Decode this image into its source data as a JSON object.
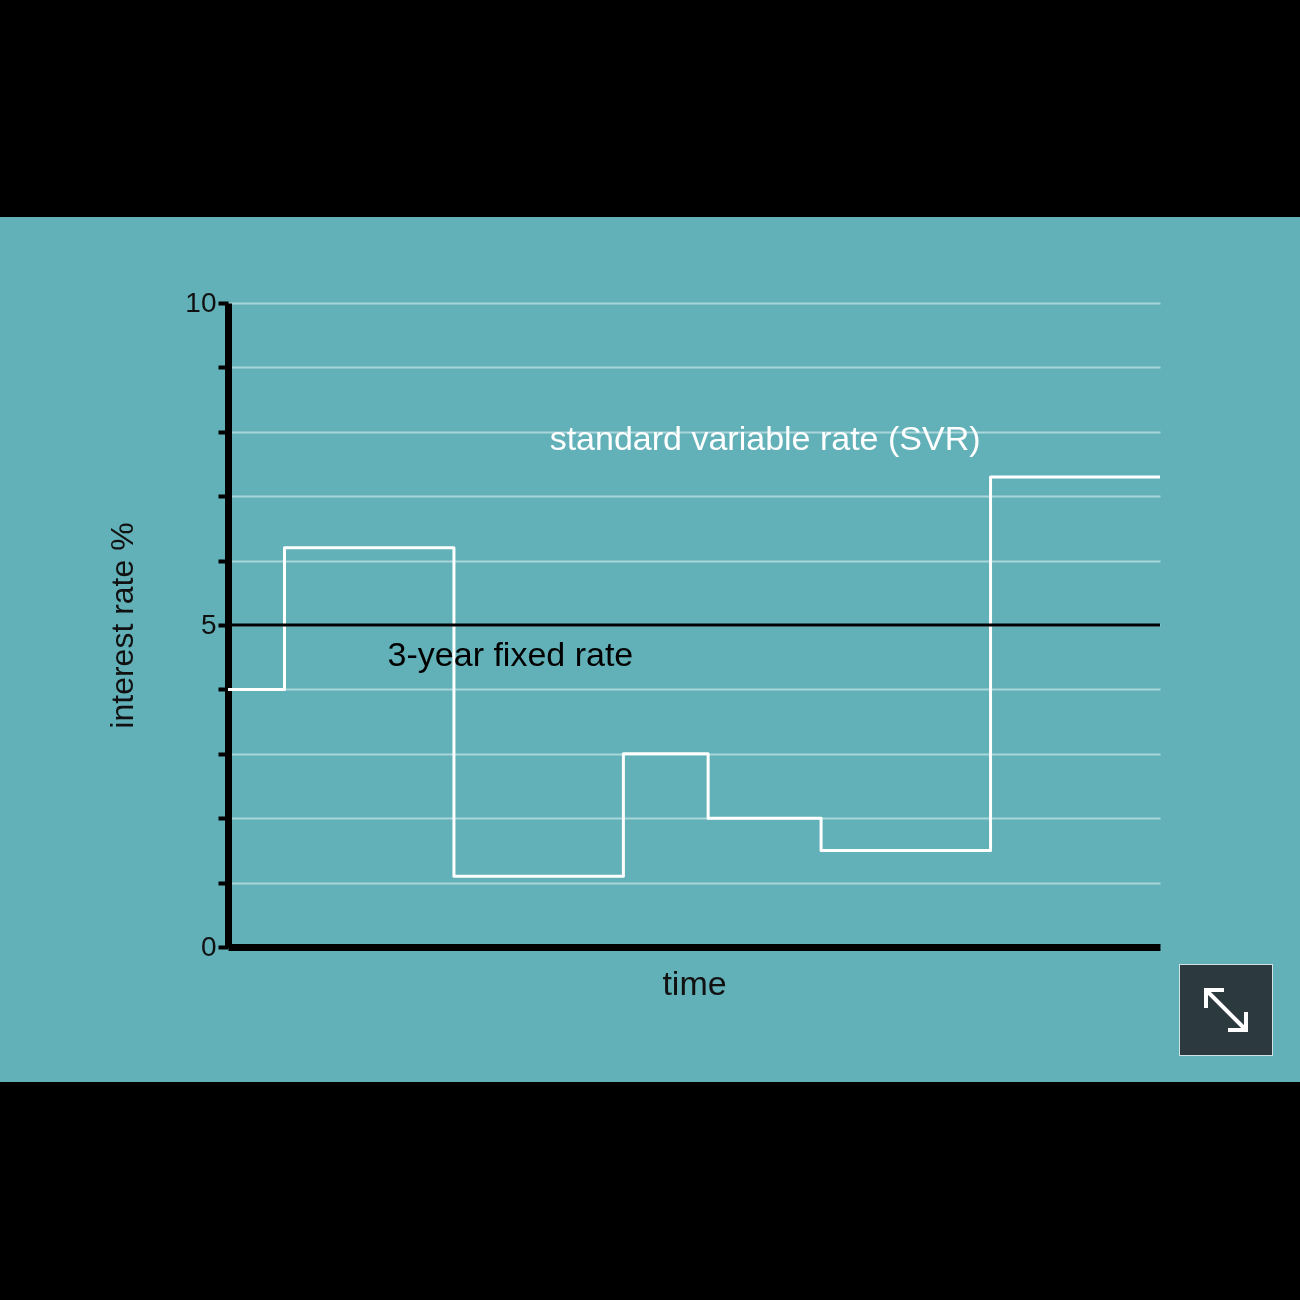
{
  "chart_data": {
    "type": "step",
    "xlabel": "time",
    "ylabel": "interest rate %",
    "categories": [
      null,
      null,
      null,
      null,
      null,
      null,
      null,
      null,
      null,
      null,
      null,
      null,
      null,
      null,
      null,
      null,
      null,
      null,
      null,
      null,
      null,
      null,
      null,
      null,
      null,
      null,
      null,
      null,
      null,
      null,
      null,
      null,
      null,
      null
    ],
    "series": [
      {
        "name": "standard variable rate (SVR)",
        "color": "#ffffff",
        "values": [
          4,
          4,
          6.2,
          6.2,
          6.2,
          6.2,
          6.2,
          6.2,
          1.1,
          1.1,
          1.1,
          1.1,
          1.1,
          1.1,
          3,
          3,
          3,
          2,
          2,
          2,
          2,
          1.5,
          1.5,
          1.5,
          1.5,
          1.5,
          1.5,
          7.3,
          7.3,
          7.3,
          7.3,
          7.3,
          7.3,
          7.3
        ]
      }
    ],
    "ylim": [
      0,
      10
    ],
    "yticks": [
      0,
      {
        "value": 1,
        "label": null
      },
      {
        "value": 2,
        "label": null
      },
      {
        "value": 3,
        "label": null
      },
      {
        "value": 4,
        "label": null
      },
      5,
      {
        "value": 6,
        "label": null
      },
      {
        "value": 7,
        "label": null
      },
      {
        "value": 8,
        "label": null
      },
      {
        "value": 9,
        "label": null
      },
      10
    ],
    "ref_lines": [
      {
        "axis": "y",
        "value": 5,
        "label": "3-year fixed rate",
        "color": "#000000"
      }
    ],
    "grid": "y",
    "tick_labels": "y"
  }
}
